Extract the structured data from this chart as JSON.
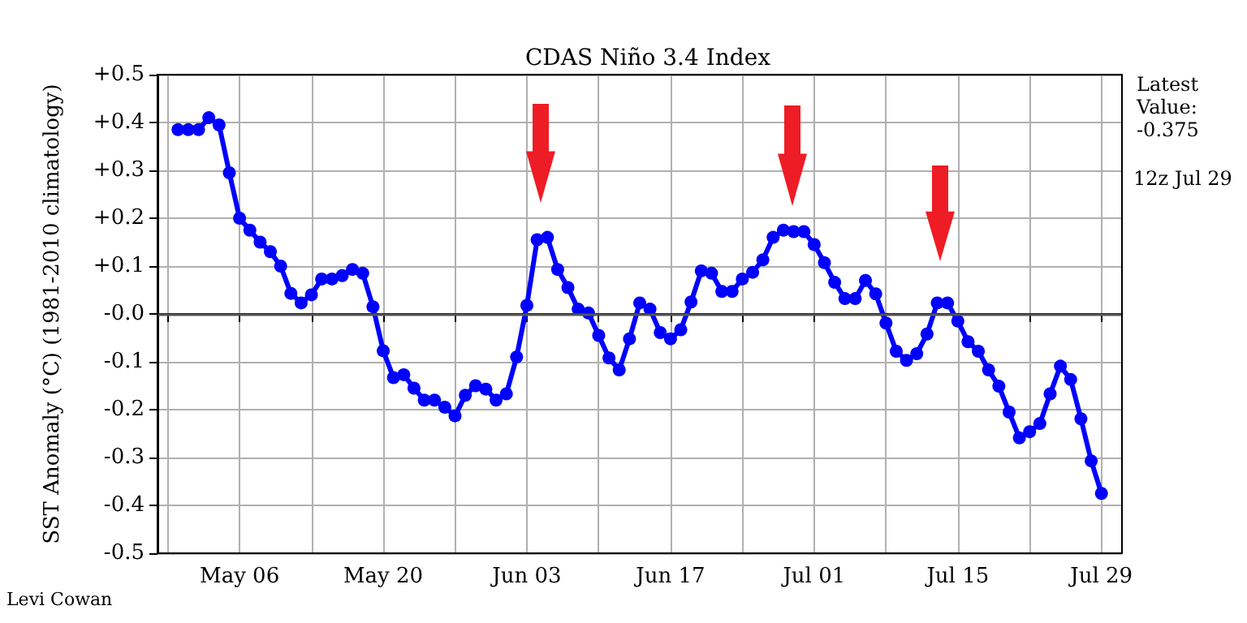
{
  "chart_data": {
    "type": "line",
    "title": "CDAS Niño 3.4 Index",
    "ylabel": "SST Anomaly (°C) (1981-2010 climatology)",
    "x": [
      "--04-30",
      "--05-01",
      "--05-02",
      "--05-03",
      "--05-04",
      "--05-05",
      "--05-06",
      "--05-07",
      "--05-08",
      "--05-09",
      "--05-10",
      "--05-11",
      "--05-12",
      "--05-13",
      "--05-14",
      "--05-15",
      "--05-16",
      "--05-17",
      "--05-18",
      "--05-19",
      "--05-20",
      "--05-21",
      "--05-22",
      "--05-23",
      "--05-24",
      "--05-25",
      "--05-26",
      "--05-27",
      "--05-28",
      "--05-29",
      "--05-30",
      "--05-31",
      "--06-01",
      "--06-02",
      "--06-03",
      "--06-04",
      "--06-05",
      "--06-06",
      "--06-07",
      "--06-08",
      "--06-09",
      "--06-10",
      "--06-11",
      "--06-12",
      "--06-13",
      "--06-14",
      "--06-15",
      "--06-16",
      "--06-17",
      "--06-18",
      "--06-19",
      "--06-20",
      "--06-21",
      "--06-22",
      "--06-23",
      "--06-24",
      "--06-25",
      "--06-26",
      "--06-27",
      "--06-28",
      "--06-29",
      "--06-30",
      "--07-01",
      "--07-02",
      "--07-03",
      "--07-04",
      "--07-05",
      "--07-06",
      "--07-07",
      "--07-08",
      "--07-09",
      "--07-10",
      "--07-11",
      "--07-12",
      "--07-13",
      "--07-14",
      "--07-15",
      "--07-16",
      "--07-17",
      "--07-18",
      "--07-19",
      "--07-20",
      "--07-21",
      "--07-22",
      "--07-23",
      "--07-24",
      "--07-25",
      "--07-26",
      "--07-27",
      "--07-28",
      "--07-29"
    ],
    "series": [
      {
        "color": "#0000ff",
        "values": [
          0.385,
          0.385,
          0.385,
          0.41,
          0.395,
          0.295,
          0.2,
          0.175,
          0.15,
          0.13,
          0.1,
          0.043,
          0.023,
          0.04,
          0.073,
          0.073,
          0.08,
          0.093,
          0.085,
          0.015,
          -0.077,
          -0.133,
          -0.127,
          -0.155,
          -0.18,
          -0.18,
          -0.195,
          -0.213,
          -0.17,
          -0.15,
          -0.157,
          -0.18,
          -0.167,
          -0.09,
          0.018,
          0.155,
          0.16,
          0.093,
          0.055,
          0.01,
          0.002,
          -0.045,
          -0.092,
          -0.117,
          -0.052,
          0.023,
          0.01,
          -0.039,
          -0.052,
          -0.033,
          0.025,
          0.09,
          0.085,
          0.047,
          0.047,
          0.073,
          0.087,
          0.113,
          0.16,
          0.175,
          0.172,
          0.172,
          0.145,
          0.107,
          0.066,
          0.032,
          0.032,
          0.07,
          0.042,
          -0.019,
          -0.078,
          -0.097,
          -0.083,
          -0.042,
          0.023,
          0.023,
          -0.015,
          -0.058,
          -0.078,
          -0.117,
          -0.151,
          -0.205,
          -0.259,
          -0.246,
          -0.229,
          -0.167,
          -0.109,
          -0.137,
          -0.219,
          -0.307,
          -0.375
        ]
      }
    ],
    "xlim": [
      "--04-28",
      "--07-31"
    ],
    "xticks": [
      {
        "value": "--04-29",
        "label": null
      },
      {
        "value": "--05-06",
        "label": "May 06"
      },
      {
        "value": "--05-13",
        "label": null
      },
      {
        "value": "--05-20",
        "label": "May 20"
      },
      {
        "value": "--05-27",
        "label": null
      },
      {
        "value": "--06-03",
        "label": "Jun 03"
      },
      {
        "value": "--06-10",
        "label": null
      },
      {
        "value": "--06-17",
        "label": "Jun 17"
      },
      {
        "value": "--06-24",
        "label": null
      },
      {
        "value": "--07-01",
        "label": "Jul 01"
      },
      {
        "value": "--07-08",
        "label": null
      },
      {
        "value": "--07-15",
        "label": "Jul 15"
      },
      {
        "value": "--07-22",
        "label": null
      },
      {
        "value": "--07-29",
        "label": "Jul 29"
      }
    ],
    "ylim": [
      -0.5,
      0.5
    ],
    "yticks": [
      {
        "value": -0.5,
        "label": "-0.5"
      },
      {
        "value": -0.4,
        "label": "-0.4"
      },
      {
        "value": -0.3,
        "label": "-0.3"
      },
      {
        "value": -0.2,
        "label": "-0.2"
      },
      {
        "value": -0.1,
        "label": "-0.1"
      },
      {
        "value": 0,
        "label": "-0.0"
      },
      {
        "value": 0.1,
        "label": "+0.1"
      },
      {
        "value": 0.2,
        "label": "+0.2"
      },
      {
        "value": 0.3,
        "label": "+0.3"
      },
      {
        "value": 0.4,
        "label": "+0.4"
      },
      {
        "value": 0.5,
        "label": "+0.5"
      }
    ],
    "ref_lines": [
      {
        "axis": "y",
        "value": 0,
        "label": null,
        "color": "#555555"
      }
    ],
    "annotations": [
      "Latest Value: -0.375",
      "12z Jul 29",
      "Levi Cowan"
    ],
    "grid": true,
    "marker": "circle",
    "line_style": "solid"
  }
}
